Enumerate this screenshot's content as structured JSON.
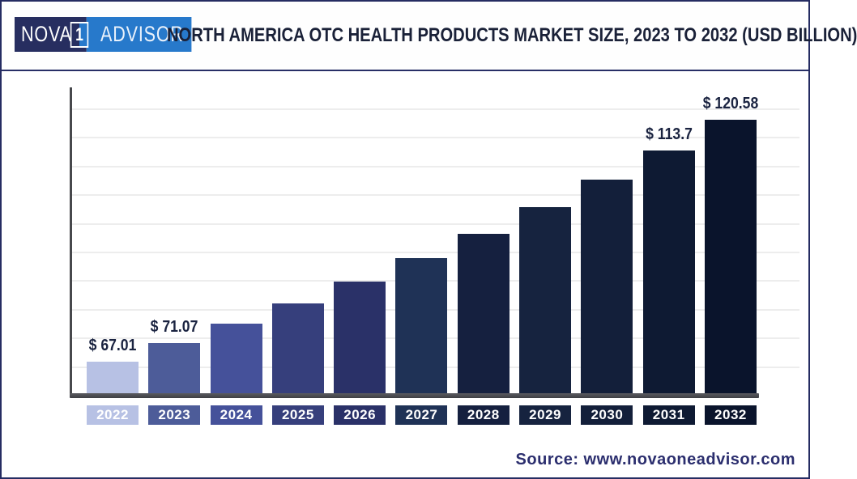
{
  "header": {
    "logo": {
      "left_text": "NOVA",
      "box_text": "1",
      "right_text": "ADVISOR",
      "left_bg": "#272e60",
      "right_bg": "#2779cb"
    },
    "title": "NORTH AMERICA OTC HEALTH PRODUCTS MARKET SIZE, 2023 TO 2032 (USD BILLION)"
  },
  "chart_data": {
    "type": "bar",
    "title": "North America OTC Health Products Market Size, 2023 to 2032 (USD Billion)",
    "xlabel": "",
    "ylabel": "",
    "unit": "USD Billion",
    "categories": [
      "2022",
      "2023",
      "2024",
      "2025",
      "2026",
      "2027",
      "2028",
      "2029",
      "2030",
      "2031",
      "2032"
    ],
    "values": [
      67.01,
      71.07,
      75.37,
      79.93,
      84.77,
      89.9,
      95.34,
      101.11,
      107.23,
      113.7,
      120.58
    ],
    "data_labels": [
      "$ 67.01",
      "$ 71.07",
      "",
      "",
      "",
      "",
      "",
      "",
      "",
      "$ 113.7",
      "$ 120.58"
    ],
    "bar_colors": [
      "#b7c1e4",
      "#4d5c99",
      "#45519a",
      "#363f7c",
      "#2a3168",
      "#1f3256",
      "#15203f",
      "#16233f",
      "#131f3a",
      "#0e1a33",
      "#0a142c"
    ],
    "ylim": [
      60,
      127.7
    ],
    "grid": "faint horizontal gridlines, no y-axis tick labels",
    "legend": "none"
  },
  "footer": {
    "source": "Source: www.novaoneadvisor.com"
  },
  "colors": {
    "frame_border": "#252c62",
    "title_text": "#1a2138",
    "axis": "#47484c",
    "gridline": "#ededed",
    "source_text": "#2b2e6e"
  }
}
